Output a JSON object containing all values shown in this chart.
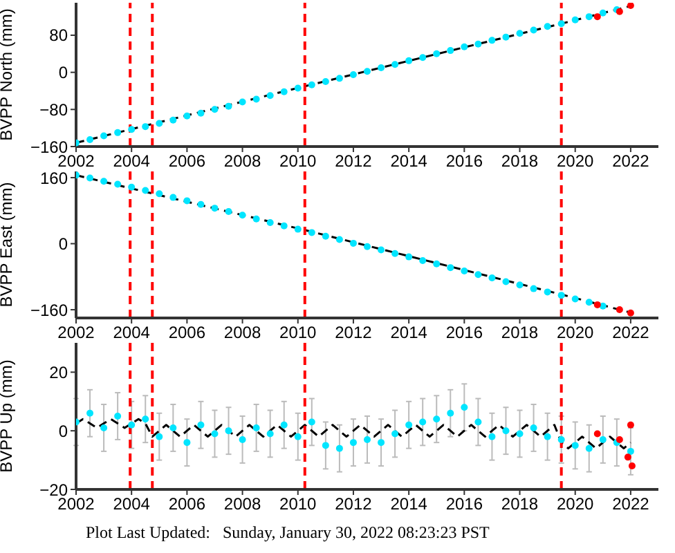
{
  "chart_data": [
    {
      "type": "scatter",
      "ylabel": "BVPP North (mm)",
      "xlim": [
        2002,
        2023
      ],
      "xticks": [
        2002,
        2004,
        2006,
        2008,
        2010,
        2012,
        2014,
        2016,
        2018,
        2020,
        2022
      ],
      "ylim": [
        -160,
        150
      ],
      "yticks": [
        -160,
        -80,
        0,
        80
      ],
      "grid": false,
      "legend": false,
      "ref_lines": [
        {
          "axis": "x",
          "value": 2003.95,
          "color": "#ff0000",
          "line_style": "dashed"
        },
        {
          "axis": "x",
          "value": 2004.75,
          "color": "#ff0000",
          "line_style": "dashed"
        },
        {
          "axis": "x",
          "value": 2010.25,
          "color": "#ff0000",
          "line_style": "dashed"
        },
        {
          "axis": "x",
          "value": 2019.5,
          "color": "#ff0000",
          "line_style": "dashed"
        }
      ],
      "series": [
        {
          "type": "scatter",
          "color": "#00e5ff",
          "x": [
            2002,
            2002.5,
            2003,
            2003.5,
            2004,
            2004.5,
            2005,
            2005.5,
            2006,
            2006.5,
            2007,
            2007.5,
            2008,
            2008.5,
            2009,
            2009.5,
            2010,
            2010.5,
            2011,
            2011.5,
            2012,
            2012.5,
            2013,
            2013.5,
            2014,
            2014.5,
            2015,
            2015.5,
            2016,
            2016.5,
            2017,
            2017.5,
            2018,
            2018.5,
            2019,
            2019.5,
            2020,
            2020.5,
            2021,
            2021.5
          ],
          "values": [
            -152,
            -145,
            -137,
            -130,
            -123,
            -117,
            -110,
            -103,
            -94,
            -88,
            -80,
            -73,
            -64,
            -58,
            -50,
            -42,
            -34,
            -27,
            -20,
            -13,
            -5,
            2,
            10,
            17,
            25,
            32,
            40,
            47,
            55,
            61,
            69,
            76,
            84,
            91,
            99,
            105,
            113,
            120,
            128,
            135
          ]
        },
        {
          "type": "line",
          "color": "#000000",
          "line_style": "dashed",
          "x": [
            2002,
            2010.25,
            2019.5,
            2022
          ],
          "values": [
            -152,
            -30,
            105,
            143
          ]
        },
        {
          "type": "scatter",
          "color": "#ff0000",
          "x": [
            2020.8,
            2021.6,
            2022
          ],
          "values": [
            120,
            131,
            144
          ]
        }
      ]
    },
    {
      "type": "scatter",
      "ylabel": "BVPP East (mm)",
      "xlim": [
        2002,
        2023
      ],
      "xticks": [
        2002,
        2004,
        2006,
        2008,
        2010,
        2012,
        2014,
        2016,
        2018,
        2020,
        2022
      ],
      "ylim": [
        -180,
        175
      ],
      "yticks": [
        -160,
        0,
        160
      ],
      "grid": false,
      "legend": false,
      "ref_lines": [
        {
          "axis": "x",
          "value": 2003.95,
          "color": "#ff0000",
          "line_style": "dashed"
        },
        {
          "axis": "x",
          "value": 2004.75,
          "color": "#ff0000",
          "line_style": "dashed"
        },
        {
          "axis": "x",
          "value": 2010.25,
          "color": "#ff0000",
          "line_style": "dashed"
        },
        {
          "axis": "x",
          "value": 2019.5,
          "color": "#ff0000",
          "line_style": "dashed"
        }
      ],
      "series": [
        {
          "type": "scatter",
          "color": "#00e5ff",
          "x": [
            2002,
            2002.5,
            2003,
            2003.5,
            2004,
            2004.5,
            2005,
            2005.5,
            2006,
            2006.5,
            2007,
            2007.5,
            2008,
            2008.5,
            2009,
            2009.5,
            2010,
            2010.5,
            2011,
            2011.5,
            2012,
            2012.5,
            2013,
            2013.5,
            2014,
            2014.5,
            2015,
            2015.5,
            2016,
            2016.5,
            2017,
            2017.5,
            2018,
            2018.5,
            2019,
            2019.5,
            2020,
            2020.5,
            2021
          ],
          "values": [
            166,
            159,
            151,
            144,
            137,
            129,
            121,
            112,
            104,
            95,
            86,
            78,
            69,
            60,
            51,
            43,
            35,
            27,
            18,
            10,
            1,
            -7,
            -15,
            -24,
            -32,
            -41,
            -49,
            -58,
            -66,
            -75,
            -83,
            -92,
            -100,
            -109,
            -117,
            -125,
            -134,
            -142,
            -151
          ]
        },
        {
          "type": "line",
          "color": "#000000",
          "line_style": "dashed",
          "x": [
            2002,
            2010.25,
            2019.5,
            2022
          ],
          "values": [
            166,
            33,
            -123,
            -167
          ]
        },
        {
          "type": "scatter",
          "color": "#ff0000",
          "x": [
            2020.8,
            2021.6,
            2022
          ],
          "values": [
            -148,
            -160,
            -168
          ]
        }
      ]
    },
    {
      "type": "scatter",
      "ylabel": "BVPP Up (mm)",
      "xlim": [
        2002,
        2023
      ],
      "xticks": [
        2002,
        2004,
        2006,
        2008,
        2010,
        2012,
        2014,
        2016,
        2018,
        2020,
        2022
      ],
      "ylim": [
        -20,
        30
      ],
      "yticks": [
        -20,
        0,
        20
      ],
      "grid": false,
      "legend": false,
      "annotations": [
        "Plot Last Updated:   Sunday, January 30, 2022 08:23:23 PST"
      ],
      "ref_lines": [
        {
          "axis": "x",
          "value": 2003.95,
          "color": "#ff0000",
          "line_style": "dashed"
        },
        {
          "axis": "x",
          "value": 2004.75,
          "color": "#ff0000",
          "line_style": "dashed"
        },
        {
          "axis": "x",
          "value": 2010.25,
          "color": "#ff0000",
          "line_style": "dashed"
        },
        {
          "axis": "x",
          "value": 2019.5,
          "color": "#ff0000",
          "line_style": "dashed"
        }
      ],
      "series": [
        {
          "type": "scatter",
          "color": "#00e5ff",
          "x": [
            2002,
            2002.5,
            2003,
            2003.5,
            2004,
            2004.5,
            2005,
            2005.5,
            2006,
            2006.5,
            2007,
            2007.5,
            2008,
            2008.5,
            2009,
            2009.5,
            2010,
            2010.5,
            2011,
            2011.5,
            2012,
            2012.5,
            2013,
            2013.5,
            2014,
            2014.5,
            2015,
            2015.5,
            2016,
            2016.5,
            2017,
            2017.5,
            2018,
            2018.5,
            2019,
            2019.5,
            2020,
            2020.5,
            2021,
            2021.5,
            2022
          ],
          "values": [
            3,
            6,
            1,
            5,
            2,
            4,
            -2,
            1,
            -4,
            2,
            -1,
            0,
            -3,
            1,
            -1,
            2,
            -2,
            3,
            -5,
            -6,
            -4,
            -3,
            -4,
            -1,
            2,
            3,
            4,
            6,
            8,
            3,
            -2,
            0,
            -1,
            1,
            -2,
            -3,
            -5,
            -6,
            -3,
            -4,
            -7
          ],
          "errors": [
            8,
            8,
            8,
            8,
            8,
            8,
            8,
            8,
            8,
            8,
            8,
            8,
            8,
            8,
            8,
            8,
            8,
            8,
            8,
            8,
            8,
            8,
            8,
            8,
            8,
            8,
            8,
            8,
            8,
            8,
            8,
            8,
            8,
            8,
            8,
            8,
            8,
            8,
            8,
            8,
            8
          ]
        },
        {
          "type": "line",
          "color": "#000000",
          "line_style": "dashed",
          "x": [
            2002,
            2002.25,
            2002.5,
            2002.75,
            2003,
            2003.25,
            2003.5,
            2003.75,
            2004,
            2004.25,
            2004.5,
            2004.75,
            2005,
            2005.25,
            2005.5,
            2005.75,
            2006,
            2006.25,
            2006.5,
            2006.75,
            2007,
            2007.25,
            2007.5,
            2007.75,
            2008,
            2008.25,
            2008.5,
            2008.75,
            2009,
            2009.25,
            2009.5,
            2009.75,
            2010,
            2010.25,
            2010.5,
            2010.75,
            2011,
            2011.25,
            2011.5,
            2011.75,
            2012,
            2012.25,
            2012.5,
            2012.75,
            2013,
            2013.25,
            2013.5,
            2013.75,
            2014,
            2014.25,
            2014.5,
            2014.75,
            2015,
            2015.25,
            2015.5,
            2015.75,
            2016,
            2016.25,
            2016.5,
            2016.75,
            2017,
            2017.25,
            2017.5,
            2017.75,
            2018,
            2018.25,
            2018.5,
            2018.75,
            2019,
            2019.25,
            2019.5,
            2019.75,
            2020,
            2020.25,
            2020.5,
            2020.75,
            2021,
            2021.25,
            2021.5,
            2021.75,
            2022
          ],
          "values": [
            2.5,
            4,
            2.5,
            1,
            2.5,
            4,
            2.5,
            1,
            2.5,
            4,
            2.5,
            -2,
            0,
            2,
            0,
            -2,
            0,
            2,
            0,
            -2,
            0,
            2,
            0,
            -2,
            0,
            2,
            0,
            -2,
            0,
            2,
            0,
            -2,
            0,
            2,
            0,
            -2,
            0,
            2,
            0,
            -2,
            0,
            2,
            0,
            -2,
            0,
            2,
            0,
            -2,
            0,
            2,
            0,
            -2,
            0,
            2,
            0,
            -2,
            0,
            2,
            0,
            -2,
            0,
            2,
            0,
            -2,
            0,
            2,
            0,
            -2,
            0,
            2,
            -4,
            -6,
            -4,
            -2,
            -4,
            -6,
            -4,
            -2,
            -4,
            -6,
            -4
          ]
        },
        {
          "type": "scatter",
          "color": "#ff0000",
          "x": [
            2020.8,
            2021.6,
            2021.9,
            2022,
            2022.05
          ],
          "values": [
            -1,
            -3,
            -9,
            2,
            -12
          ]
        }
      ]
    }
  ]
}
